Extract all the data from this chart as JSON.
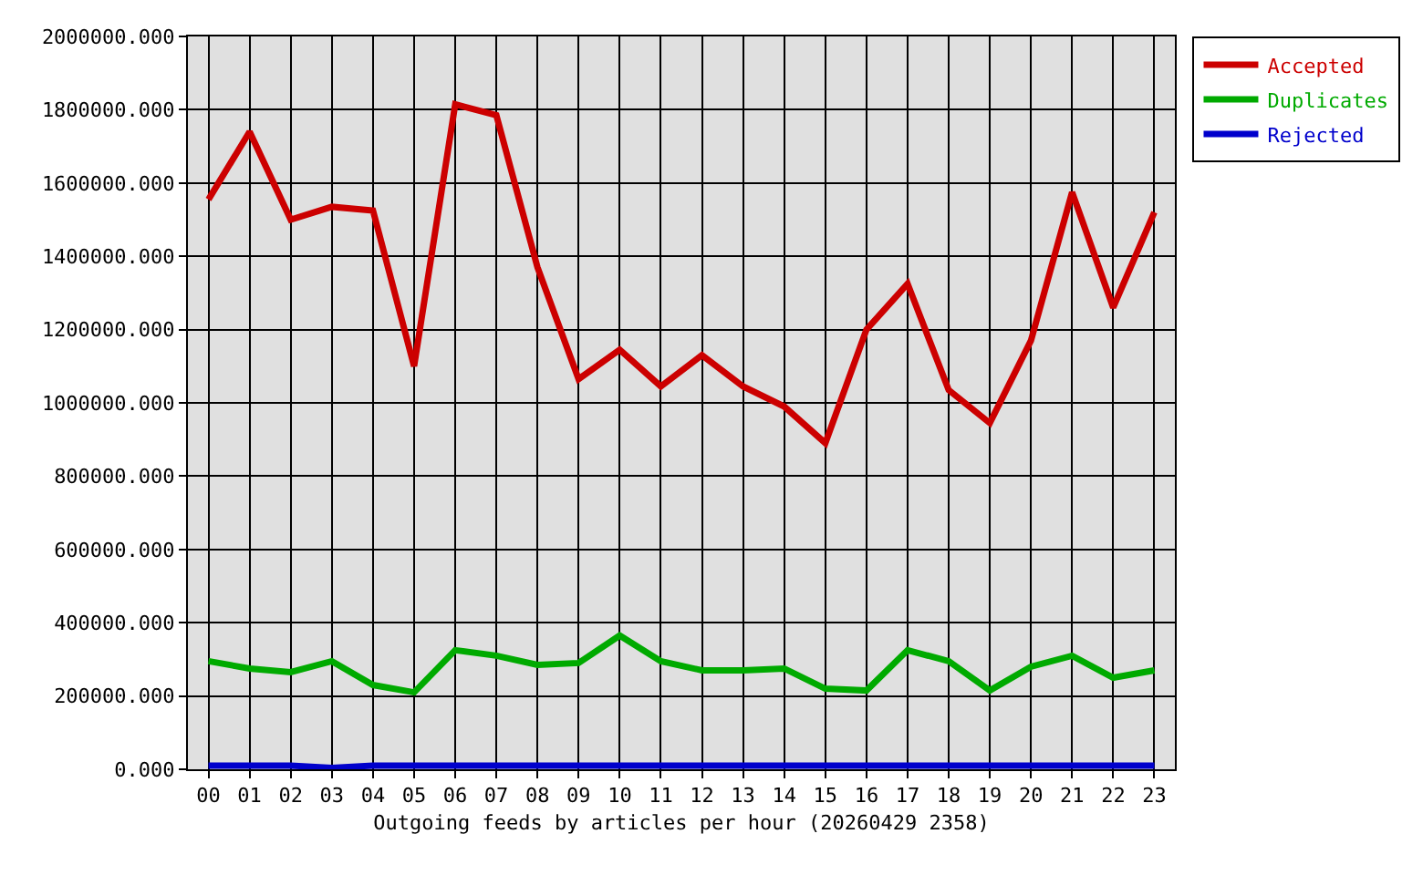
{
  "chart_data": {
    "type": "line",
    "title": "Outgoing feeds by articles per hour (20260429 2358)",
    "categories": [
      "00",
      "01",
      "02",
      "03",
      "04",
      "05",
      "06",
      "07",
      "08",
      "09",
      "10",
      "11",
      "12",
      "13",
      "14",
      "15",
      "16",
      "17",
      "18",
      "19",
      "20",
      "21",
      "22",
      "23"
    ],
    "series": [
      {
        "name": "Accepted",
        "color": "#cc0000",
        "values": [
          1555000,
          1740000,
          1500000,
          1535000,
          1525000,
          1100000,
          1815000,
          1785000,
          1370000,
          1065000,
          1145000,
          1045000,
          1130000,
          1045000,
          990000,
          890000,
          1200000,
          1325000,
          1035000,
          945000,
          1170000,
          1575000,
          1260000,
          1520000
        ]
      },
      {
        "name": "Duplicates",
        "color": "#00aa00",
        "values": [
          295000,
          275000,
          265000,
          295000,
          230000,
          210000,
          325000,
          310000,
          285000,
          290000,
          365000,
          295000,
          270000,
          270000,
          275000,
          220000,
          215000,
          325000,
          295000,
          215000,
          280000,
          310000,
          250000,
          270000
        ]
      },
      {
        "name": "Rejected",
        "color": "#0000cc",
        "values": [
          10000,
          10000,
          10000,
          4000,
          10000,
          10000,
          10000,
          10000,
          10000,
          10000,
          10000,
          10000,
          10000,
          10000,
          10000,
          10000,
          10000,
          10000,
          10000,
          10000,
          10000,
          10000,
          10000,
          10000
        ]
      }
    ],
    "ylim": [
      0,
      2000000
    ],
    "yticks": [
      {
        "value": 0,
        "label": "0.000"
      },
      {
        "value": 200000,
        "label": "200000.000"
      },
      {
        "value": 400000,
        "label": "400000.000"
      },
      {
        "value": 600000,
        "label": "600000.000"
      },
      {
        "value": 800000,
        "label": "800000.000"
      },
      {
        "value": 1000000,
        "label": "1000000.000"
      },
      {
        "value": 1200000,
        "label": "1200000.000"
      },
      {
        "value": 1400000,
        "label": "1400000.000"
      },
      {
        "value": 1600000,
        "label": "1600000.000"
      },
      {
        "value": 1800000,
        "label": "1800000.000"
      },
      {
        "value": 2000000,
        "label": "2000000.000"
      }
    ],
    "grid": true,
    "legend": "top right",
    "marker": "none",
    "line_style": "solid"
  }
}
